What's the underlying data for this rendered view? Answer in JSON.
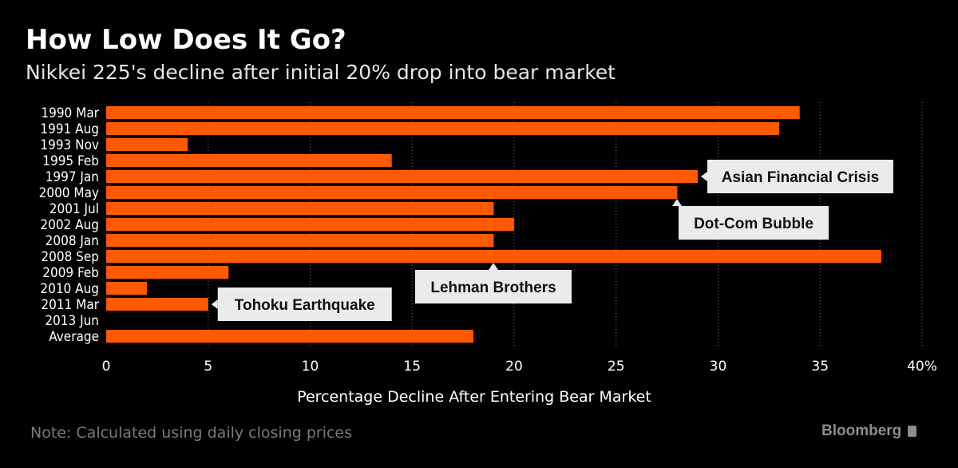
{
  "chart_data": {
    "type": "bar",
    "orientation": "horizontal",
    "title": "How Low Does It Go?",
    "subtitle": "Nikkei 225's decline after initial 20% drop into bear market",
    "xlabel": "Percentage Decline After Entering Bear Market",
    "xlim": [
      0,
      40
    ],
    "xticks": [
      "0",
      "5",
      "10",
      "15",
      "20",
      "25",
      "30",
      "35",
      "40%"
    ],
    "grid": "vertical dotted",
    "bar_color": "#ff5a00",
    "categories": [
      "1990 Mar",
      "1991 Aug",
      "1993 Nov",
      "1995 Feb",
      "1997 Jan",
      "2000 May",
      "2001 Jul",
      "2002 Aug",
      "2008 Jan",
      "2008 Sep",
      "2009 Feb",
      "2010 Aug",
      "2011 Mar",
      "2013 Jun",
      "Average"
    ],
    "values": [
      34,
      33,
      4,
      14,
      29,
      28,
      19,
      20,
      19,
      38,
      6,
      2,
      5,
      0,
      18
    ],
    "annotations": [
      {
        "text": "Asian Financial Crisis",
        "category": "1997 Jan"
      },
      {
        "text": "Dot-Com Bubble",
        "category": "2000 May"
      },
      {
        "text": "Lehman Brothers",
        "category": "2008 Sep"
      },
      {
        "text": "Tohoku Earthquake",
        "category": "2011 Mar"
      }
    ],
    "note": "Note: Calculated using daily closing prices",
    "source_brand": "Bloomberg"
  }
}
